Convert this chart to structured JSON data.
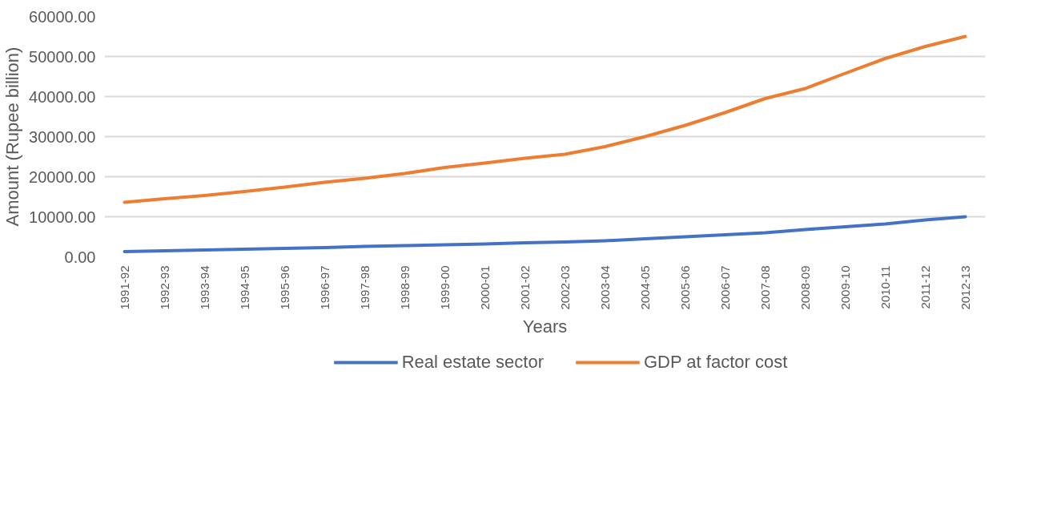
{
  "chart_data": {
    "type": "line",
    "xlabel": "Years",
    "ylabel": "Amount (Rupee billion)",
    "categories": [
      "1991-92",
      "1992-93",
      "1993-94",
      "1994-95",
      "1995-96",
      "1996-97",
      "1997-98",
      "1998-99",
      "1999-00",
      "2000-01",
      "2001-02",
      "2002-03",
      "2003-04",
      "2004-05",
      "2005-06",
      "2006-07",
      "2007-08",
      "2008-09",
      "2009-10",
      "2010-11",
      "2011-12",
      "2012-13"
    ],
    "series": [
      {
        "name": "Real estate sector",
        "color": "#4472c4",
        "values": [
          1300,
          1500,
          1700,
          1900,
          2100,
          2300,
          2600,
          2800,
          3000,
          3200,
          3500,
          3700,
          4000,
          4500,
          5000,
          5500,
          6000,
          6800,
          7500,
          8200,
          9200,
          10000
        ]
      },
      {
        "name": "GDP at factor cost",
        "color": "#ed7d31",
        "values": [
          13600,
          14500,
          15300,
          16300,
          17400,
          18600,
          19600,
          20800,
          22300,
          23400,
          24600,
          25600,
          27500,
          30000,
          32800,
          36000,
          39500,
          42000,
          45800,
          49500,
          52500,
          55000
        ]
      }
    ],
    "ylim": [
      0,
      60000
    ],
    "yticks": [
      {
        "value": 0,
        "label": "0.00"
      },
      {
        "value": 10000,
        "label": "10000.00"
      },
      {
        "value": 20000,
        "label": "20000.00"
      },
      {
        "value": 30000,
        "label": "30000.00"
      },
      {
        "value": 40000,
        "label": "40000.00"
      },
      {
        "value": 50000,
        "label": "50000.00"
      },
      {
        "value": 60000,
        "label": "60000.00"
      }
    ],
    "grid": "y",
    "legend": "bottom",
    "marker": "none",
    "line_style": "solid"
  }
}
